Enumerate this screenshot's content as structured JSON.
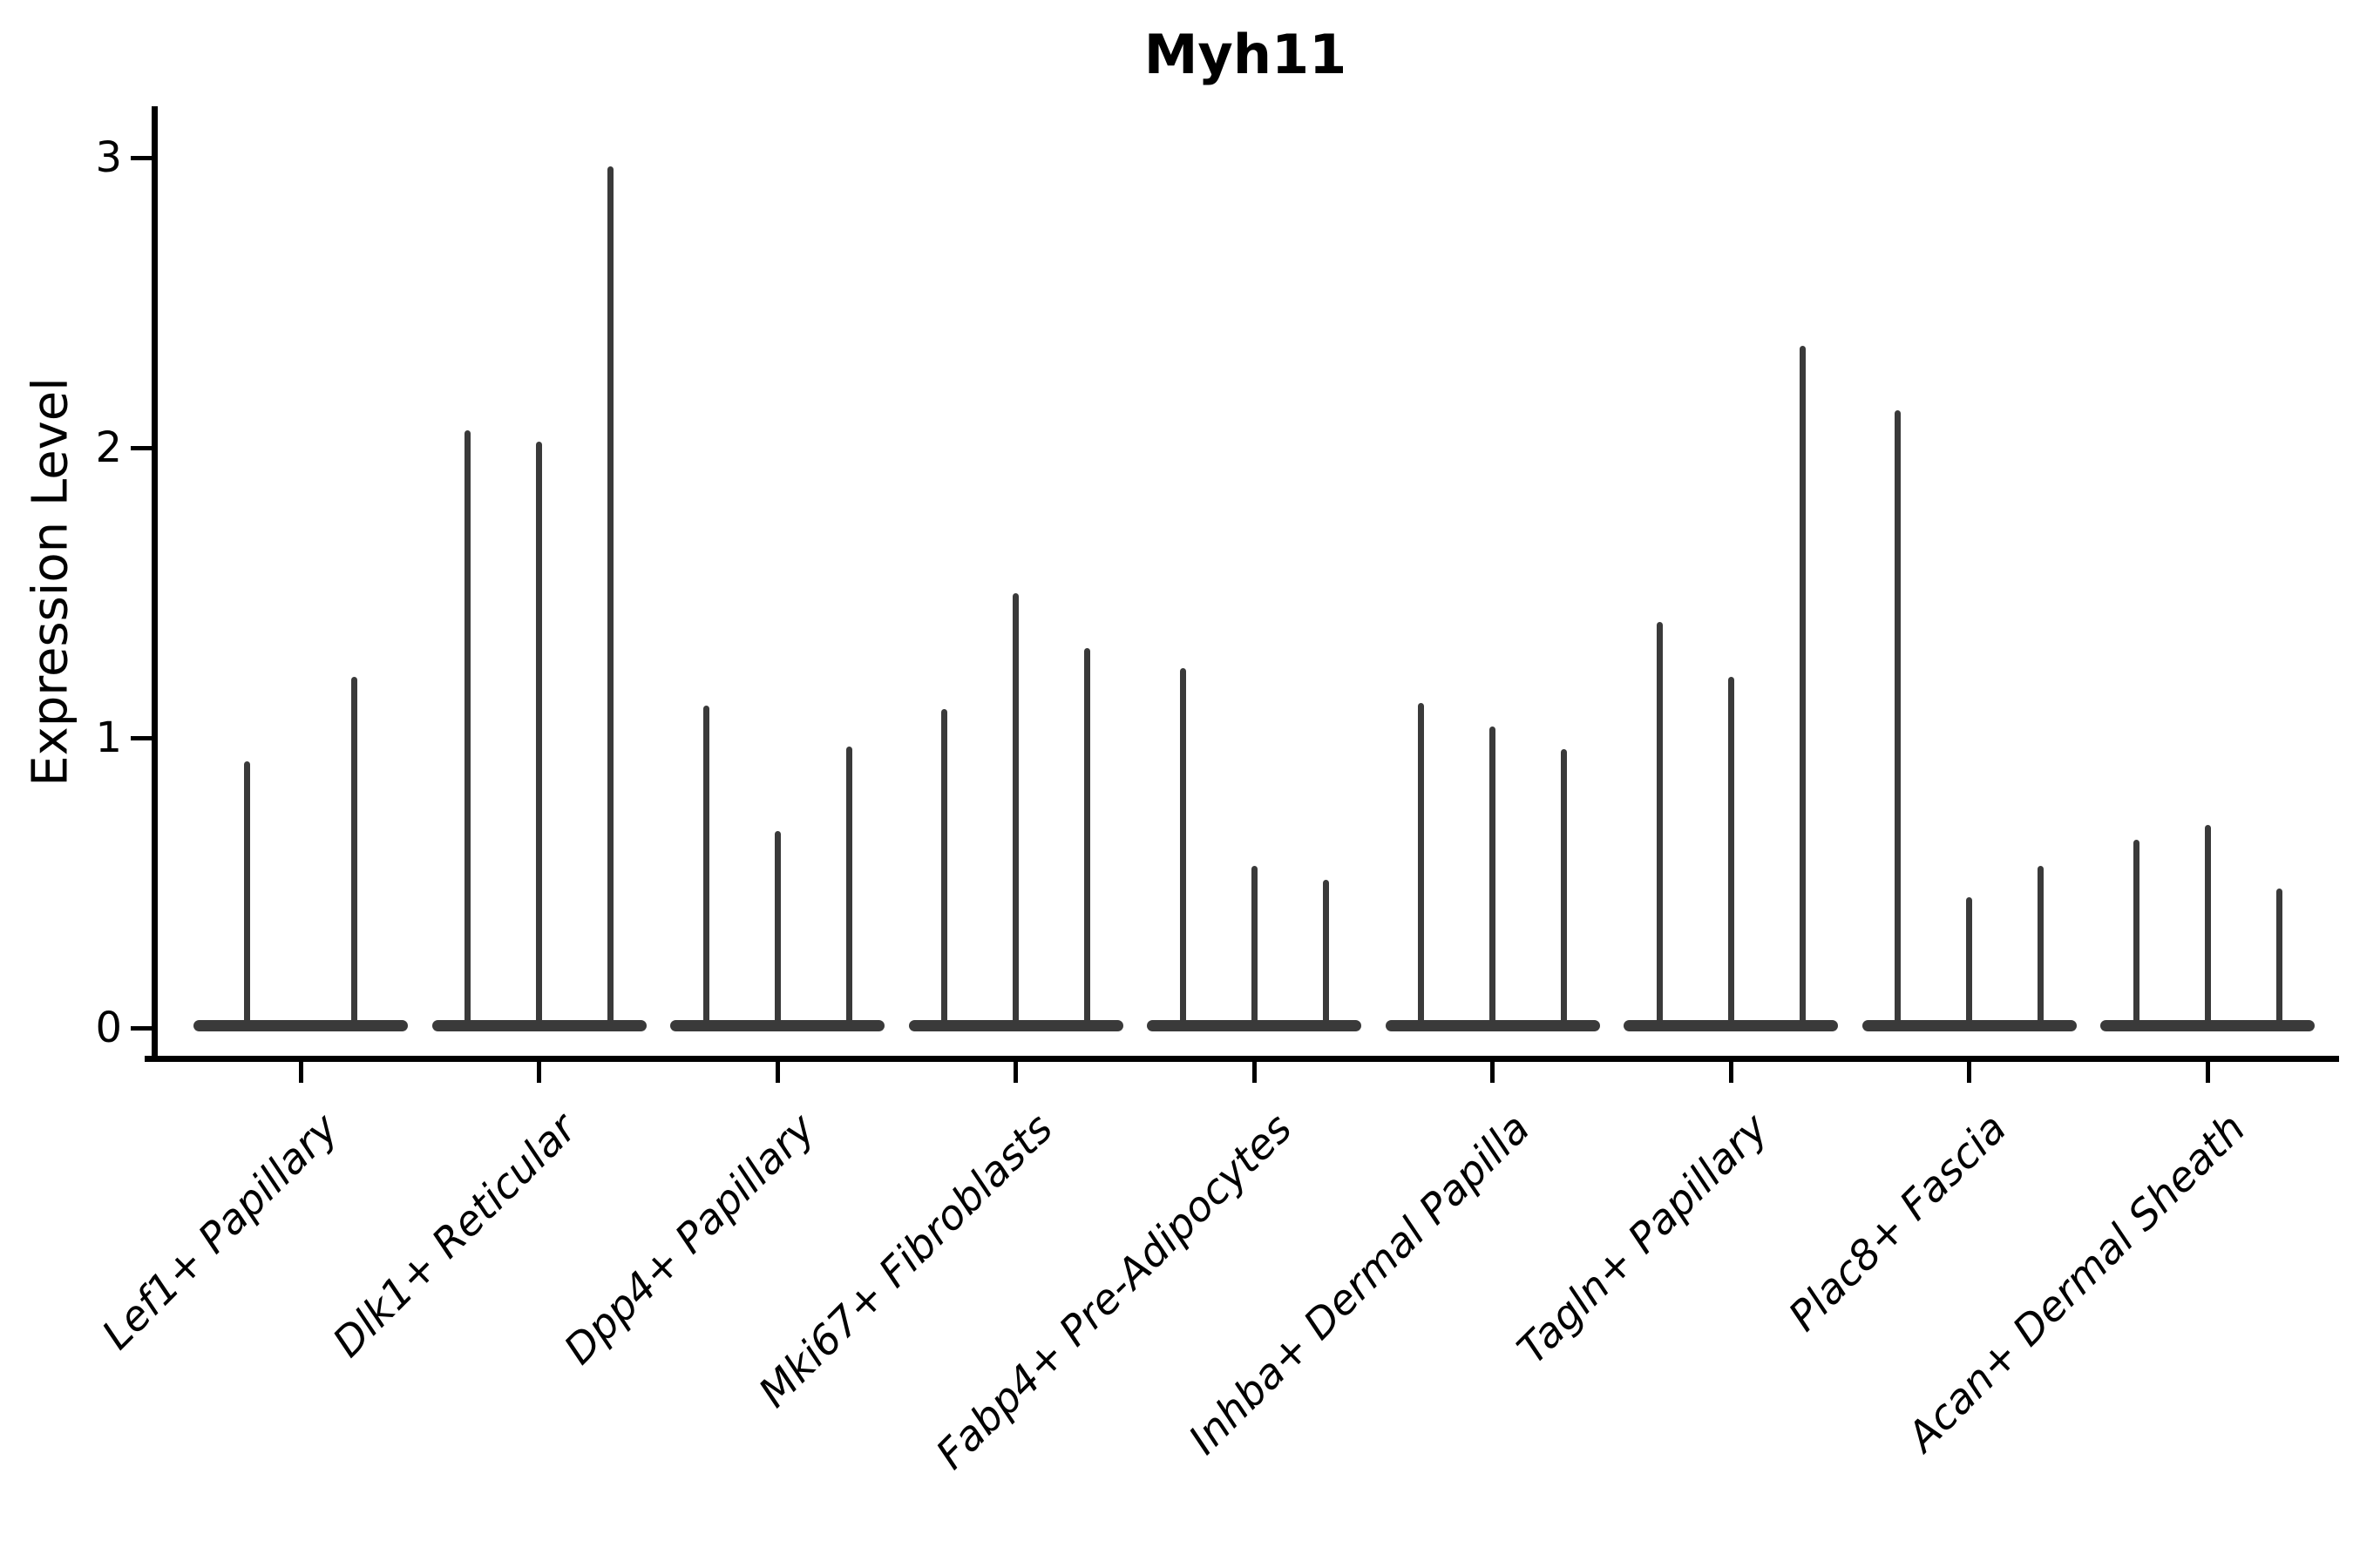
{
  "title": "Myh11",
  "y_axis": {
    "label": "Expression Level"
  },
  "colors": {
    "violin": "#3a3a3a",
    "axis": "#000000",
    "text": "#000000",
    "background": "#ffffff"
  },
  "chart_data": {
    "type": "violin",
    "title": "Myh11",
    "xlabel": "",
    "ylabel": "Expression Level",
    "ylim": [
      0,
      3
    ],
    "y_ticks": [
      0,
      1,
      2,
      3
    ],
    "grid": false,
    "legend": false,
    "x_label_rotation_deg": 45,
    "categories": [
      "Lef1+ Papillary",
      "Dlk1+ Reticular",
      "Dpp4+ Papillary",
      "Mki67+ Fibroblasts",
      "Fabp4+ Pre-Adipocytes",
      "Inhba+ Dermal Papilla",
      "Tagln+ Papillary",
      "Plac8+ Fascia",
      "Acan+ Dermal Sheath"
    ],
    "groups": [
      {
        "label": "Lef1+ Papillary",
        "spike_max_expression": [
          0.92,
          1.21
        ]
      },
      {
        "label": "Dlk1+ Reticular",
        "spike_max_expression": [
          2.06,
          2.02,
          2.97
        ]
      },
      {
        "label": "Dpp4+ Papillary",
        "spike_max_expression": [
          1.11,
          0.68,
          0.97
        ]
      },
      {
        "label": "Mki67+ Fibroblasts",
        "spike_max_expression": [
          1.1,
          1.5,
          1.31
        ]
      },
      {
        "label": "Fabp4+ Pre-Adipocytes",
        "spike_max_expression": [
          1.24,
          0.56,
          0.51
        ]
      },
      {
        "label": "Inhba+ Dermal Papilla",
        "spike_max_expression": [
          1.12,
          1.04,
          0.96
        ]
      },
      {
        "label": "Tagln+ Papillary",
        "spike_max_expression": [
          1.4,
          1.21,
          2.35
        ]
      },
      {
        "label": "Plac8+ Fascia",
        "spike_max_expression": [
          2.13,
          0.45,
          0.56
        ]
      },
      {
        "label": "Acan+ Dermal Sheath",
        "spike_max_expression": [
          0.65,
          0.7,
          0.48
        ]
      }
    ]
  }
}
